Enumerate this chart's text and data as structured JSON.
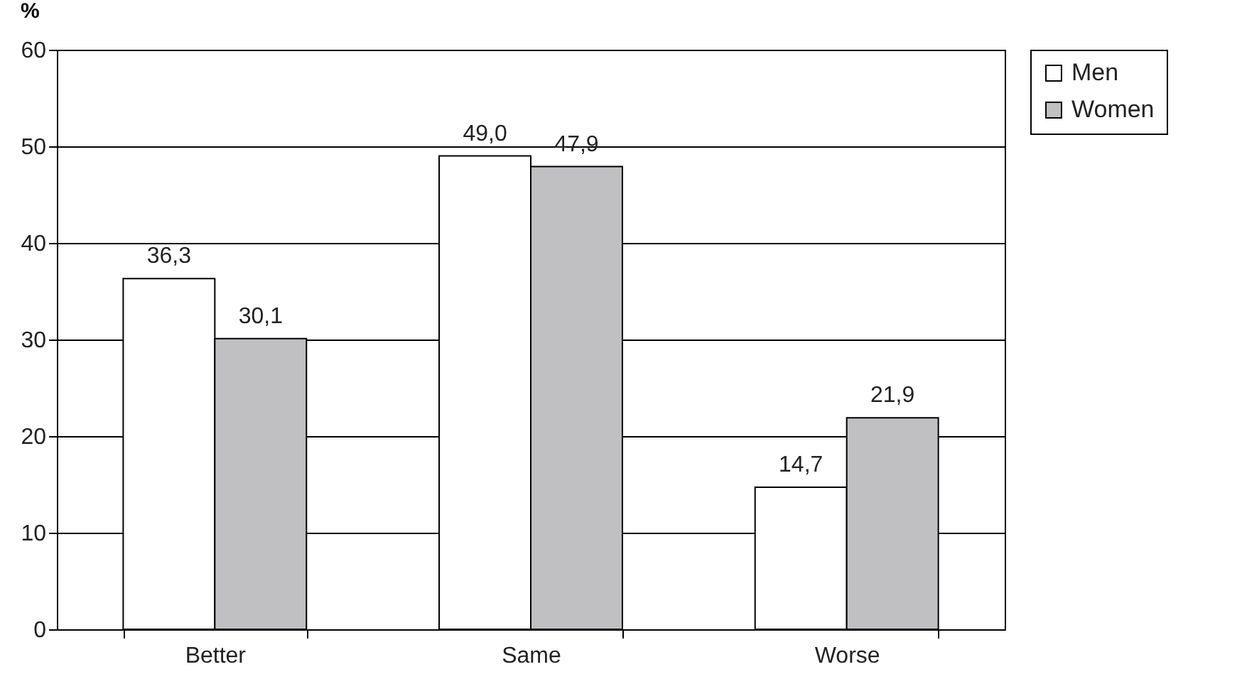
{
  "chart_data": {
    "type": "bar",
    "ylabel": "%",
    "categories": [
      "Better",
      "Same",
      "Worse"
    ],
    "series": [
      {
        "name": "Men",
        "color": "#ffffff",
        "values": [
          36.3,
          49.0,
          14.7
        ],
        "value_labels": [
          "36,3",
          "49,0",
          "14,7"
        ]
      },
      {
        "name": "Women",
        "color": "#c0c0c3",
        "values": [
          30.1,
          47.9,
          21.9
        ],
        "value_labels": [
          "30,1",
          "47,9",
          "21,9"
        ]
      }
    ],
    "ylim": [
      0,
      60
    ],
    "yticks": [
      0,
      10,
      20,
      30,
      40,
      50,
      60
    ],
    "grid": "y",
    "legend": "right"
  }
}
